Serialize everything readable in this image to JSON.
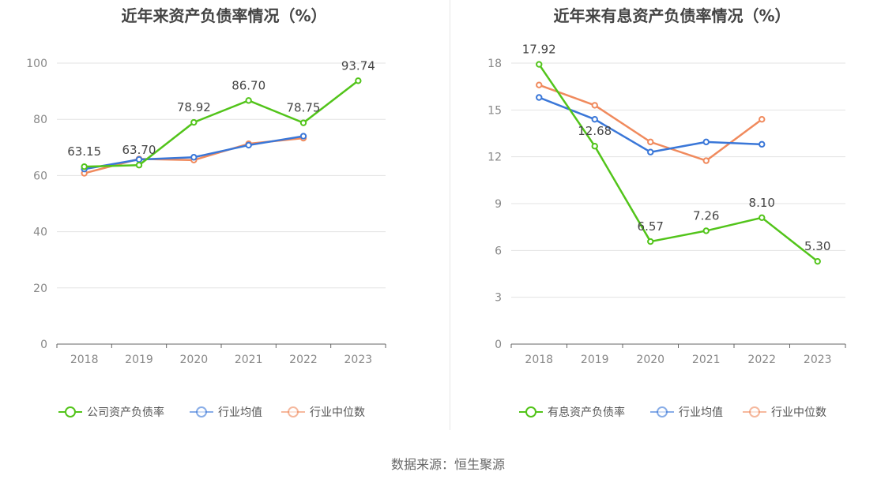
{
  "source_text": "数据来源：恒生聚源",
  "chart_data": [
    {
      "type": "line",
      "title": "近年来资产负债率情况（%）",
      "categories": [
        "2018",
        "2019",
        "2020",
        "2021",
        "2022",
        "2023"
      ],
      "ylim": [
        0,
        100
      ],
      "yticks": [
        0,
        20,
        40,
        60,
        80,
        100
      ],
      "grid": true,
      "legend_position": "bottom",
      "series": [
        {
          "name": "公司资产负债率",
          "color": "#52c41a",
          "values": [
            63.15,
            63.7,
            78.92,
            86.7,
            78.75,
            93.74
          ],
          "labels": [
            "63.15",
            "63.70",
            "78.92",
            "86.70",
            "78.75",
            "93.74"
          ]
        },
        {
          "name": "行业均值",
          "color": "#3a77d8",
          "values": [
            62.3,
            65.7,
            66.5,
            70.8,
            74.0,
            null
          ],
          "labels": null
        },
        {
          "name": "行业中位数",
          "color": "#f08a5d",
          "values": [
            60.8,
            65.9,
            65.5,
            71.3,
            73.3,
            null
          ],
          "labels": null
        }
      ]
    },
    {
      "type": "line",
      "title": "近年来有息资产负债率情况（%）",
      "categories": [
        "2018",
        "2019",
        "2020",
        "2021",
        "2022",
        "2023"
      ],
      "ylim": [
        0,
        18
      ],
      "yticks": [
        0,
        3,
        6,
        9,
        12,
        15,
        18
      ],
      "grid": true,
      "legend_position": "bottom",
      "series": [
        {
          "name": "有息资产负债率",
          "color": "#52c41a",
          "values": [
            17.92,
            12.68,
            6.57,
            7.26,
            8.1,
            5.3
          ],
          "labels": [
            "17.92",
            "12.68",
            "6.57",
            "7.26",
            "8.10",
            "5.30"
          ]
        },
        {
          "name": "行业均值",
          "color": "#3a77d8",
          "values": [
            15.8,
            14.4,
            12.3,
            12.95,
            12.8,
            null
          ],
          "labels": null
        },
        {
          "name": "行业中位数",
          "color": "#f08a5d",
          "values": [
            16.6,
            15.3,
            12.95,
            11.75,
            14.4,
            null
          ],
          "labels": null
        }
      ]
    }
  ]
}
